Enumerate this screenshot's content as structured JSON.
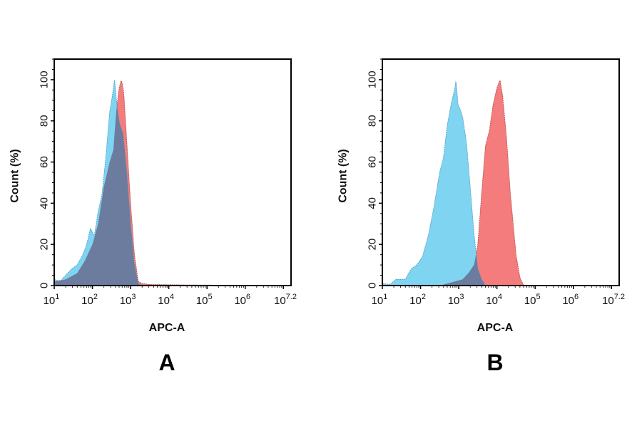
{
  "chart_data": [
    {
      "type": "area",
      "panel_label": "A",
      "xlabel": "APC-A",
      "ylabel": "Count (%)",
      "x_scale": "log10",
      "xlim_log10": [
        1,
        7.2
      ],
      "ylim": [
        0,
        110
      ],
      "x_tick_labels": [
        {
          "base": "10",
          "exp": "1"
        },
        {
          "base": "10",
          "exp": "2"
        },
        {
          "base": "10",
          "exp": "3"
        },
        {
          "base": "10",
          "exp": "4"
        },
        {
          "base": "10",
          "exp": "5"
        },
        {
          "base": "10",
          "exp": "6"
        },
        {
          "base": "10",
          "exp": "7.2"
        }
      ],
      "y_ticks": [
        0,
        20,
        40,
        60,
        80,
        100
      ],
      "grid": false,
      "series": [
        {
          "color": "#f47c7c",
          "x_log10": [
            1.0,
            1.3,
            1.6,
            1.8,
            2.0,
            2.15,
            2.3,
            2.45,
            2.55,
            2.62,
            2.7,
            2.76,
            2.82,
            2.9,
            3.0,
            3.1,
            3.2,
            3.3,
            3.5,
            4.5,
            7.2
          ],
          "values": [
            2,
            3,
            6,
            12,
            20,
            30,
            48,
            60,
            66,
            84,
            96,
            100,
            94,
            70,
            40,
            15,
            2,
            1,
            0.5,
            0.3,
            0
          ]
        },
        {
          "color": "#7fd4f2",
          "x_log10": [
            1.0,
            1.15,
            1.3,
            1.45,
            1.6,
            1.75,
            1.85,
            1.95,
            2.05,
            2.15,
            2.25,
            2.35,
            2.45,
            2.52,
            2.58,
            2.63,
            2.68,
            2.72,
            2.8,
            2.9,
            3.0,
            3.1,
            3.2,
            3.3,
            7.2
          ],
          "values": [
            3,
            2,
            5,
            8,
            10,
            15,
            20,
            28,
            24,
            36,
            44,
            62,
            84,
            92,
            100,
            90,
            82,
            78,
            74,
            55,
            30,
            10,
            1,
            0,
            0
          ]
        }
      ],
      "overlap_color": "#6c7c9e"
    },
    {
      "type": "area",
      "panel_label": "B",
      "xlabel": "APC-A",
      "ylabel": "Count (%)",
      "x_scale": "log10",
      "xlim_log10": [
        1,
        7.2
      ],
      "ylim": [
        0,
        110
      ],
      "x_tick_labels": [
        {
          "base": "10",
          "exp": "1"
        },
        {
          "base": "10",
          "exp": "2"
        },
        {
          "base": "10",
          "exp": "3"
        },
        {
          "base": "10",
          "exp": "4"
        },
        {
          "base": "10",
          "exp": "5"
        },
        {
          "base": "10",
          "exp": "6"
        },
        {
          "base": "10",
          "exp": "7.2"
        }
      ],
      "y_ticks": [
        0,
        20,
        40,
        60,
        80,
        100
      ],
      "grid": false,
      "series": [
        {
          "color": "#f47c7c",
          "x_log10": [
            1.0,
            2.5,
            2.7,
            2.9,
            3.1,
            3.25,
            3.4,
            3.5,
            3.6,
            3.7,
            3.8,
            3.9,
            4.0,
            4.08,
            4.15,
            4.25,
            4.35,
            4.5,
            4.6,
            4.7,
            7.2
          ],
          "values": [
            0,
            0,
            1,
            2,
            3,
            6,
            10,
            20,
            45,
            68,
            75,
            88,
            96,
            100,
            92,
            72,
            45,
            15,
            4,
            0,
            0
          ]
        },
        {
          "color": "#7fd4f2",
          "x_log10": [
            1.0,
            1.2,
            1.35,
            1.6,
            1.75,
            1.9,
            2.05,
            2.2,
            2.35,
            2.5,
            2.6,
            2.7,
            2.8,
            2.9,
            2.93,
            2.98,
            3.05,
            3.1,
            3.2,
            3.3,
            3.4,
            3.5,
            3.6,
            3.7,
            7.2
          ],
          "values": [
            1,
            0.5,
            3,
            3,
            8,
            10,
            14,
            24,
            38,
            55,
            62,
            78,
            88,
            96,
            100,
            88,
            85,
            82,
            70,
            48,
            25,
            8,
            3,
            0,
            0
          ]
        }
      ],
      "overlap_color": "#6c7c9e"
    }
  ]
}
